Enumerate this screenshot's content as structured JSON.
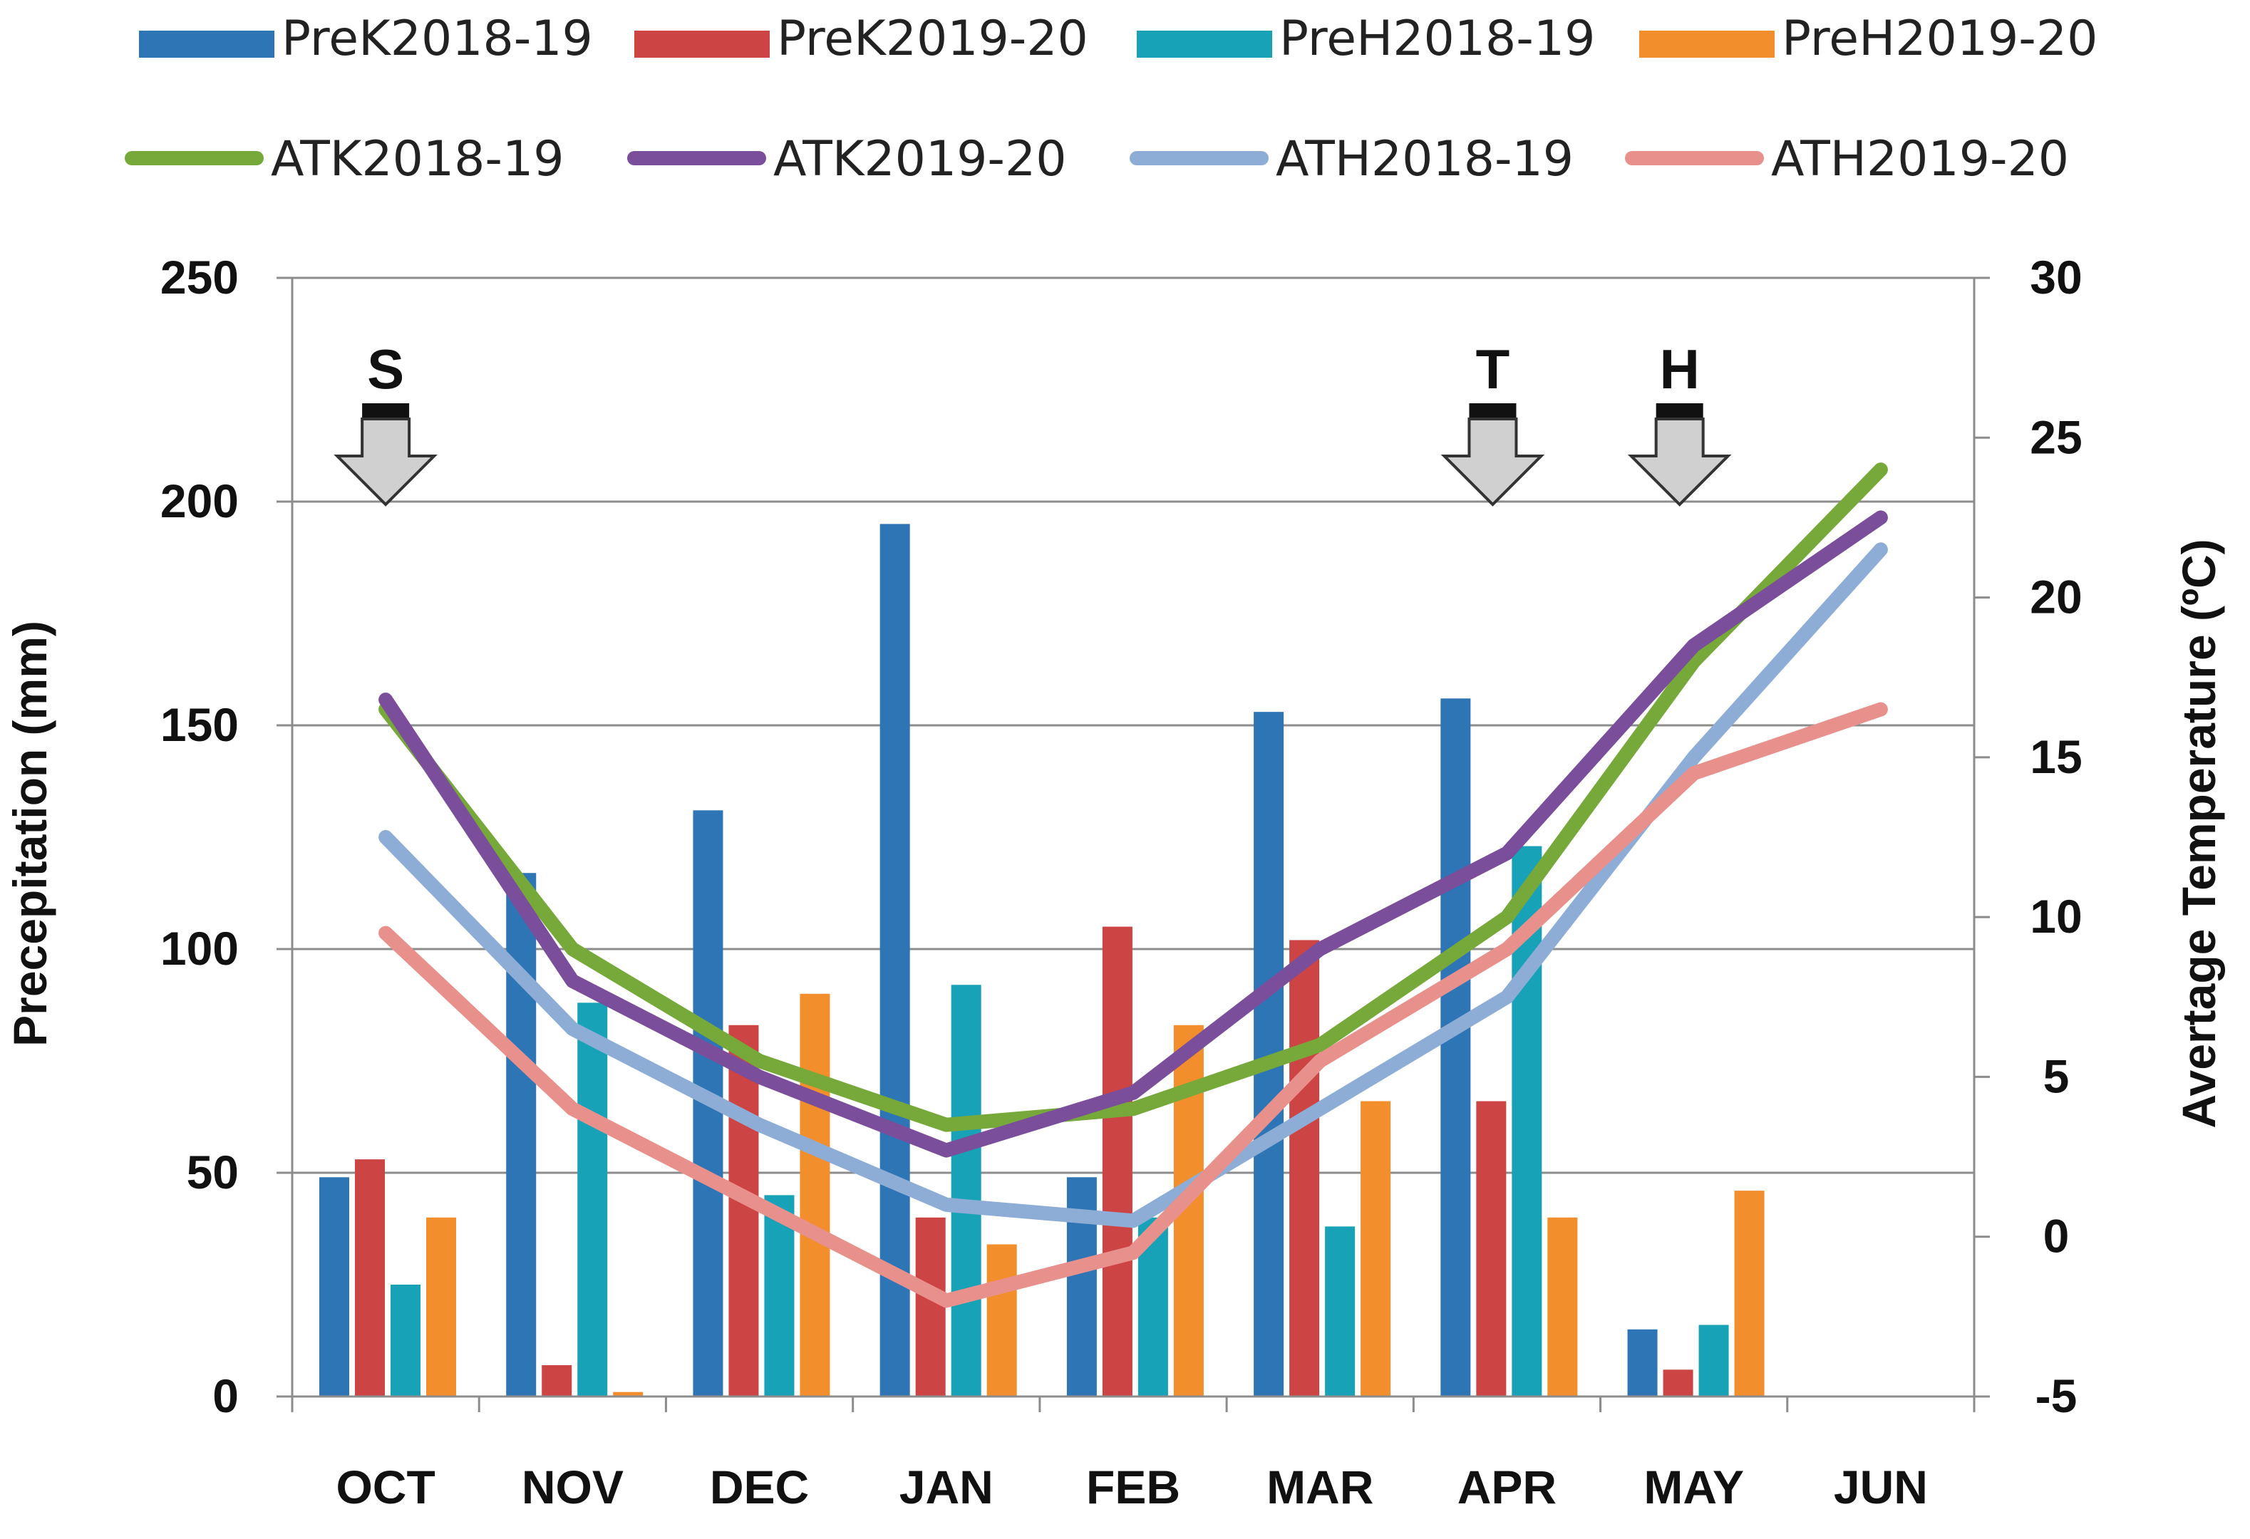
{
  "chart_data": {
    "type": "bar+line",
    "title": "",
    "xlabel": "",
    "ylabel": "Precepitation (mm)",
    "y2label": "Avertage Temperature (ºC)",
    "categories": [
      "OCT",
      "NOV",
      "DEC",
      "JAN",
      "FEB",
      "MAR",
      "APR",
      "MAY",
      "JUN"
    ],
    "ylim": [
      0,
      250
    ],
    "y2lim": [
      -5,
      30
    ],
    "yticks": [
      "0",
      "50",
      "100",
      "150",
      "200",
      "250"
    ],
    "y2ticks": [
      "-5",
      "0",
      "5",
      "10",
      "15",
      "20",
      "25",
      "30"
    ],
    "grid": "horizontal",
    "legend_position": "top",
    "bar_series": [
      {
        "name": "PreK2018-19",
        "color": "#2e75b6",
        "values": [
          49,
          117,
          131,
          195,
          49,
          153,
          156,
          15,
          null
        ]
      },
      {
        "name": "PreK2019-20",
        "color": "#cc4444",
        "values": [
          53,
          7,
          83,
          40,
          105,
          102,
          66,
          6,
          null
        ]
      },
      {
        "name": "PreH2018-19",
        "color": "#17a2b8",
        "values": [
          25,
          88,
          45,
          92,
          40,
          38,
          123,
          16,
          null
        ]
      },
      {
        "name": "PreH2019-20",
        "color": "#f28e2b",
        "values": [
          40,
          1,
          90,
          34,
          83,
          66,
          40,
          46,
          null
        ]
      }
    ],
    "line_series": [
      {
        "name": "ATK2018-19",
        "color": "#77a83a",
        "values": [
          16.5,
          9,
          5.5,
          3.5,
          4,
          6,
          10,
          18,
          24
        ]
      },
      {
        "name": "ATK2019-20",
        "color": "#7a4e9a",
        "values": [
          16.8,
          8,
          5,
          2.7,
          4.5,
          9,
          12,
          18.5,
          22.5
        ]
      },
      {
        "name": "ATH2018-19",
        "color": "#8eadd6",
        "values": [
          12.5,
          6.5,
          3.5,
          1,
          0.5,
          4,
          7.5,
          15,
          21.5
        ]
      },
      {
        "name": "ATH2019-20",
        "color": "#e8908b",
        "values": [
          9.5,
          4,
          1,
          -2,
          -0.5,
          5.5,
          9,
          14.5,
          16.5
        ]
      }
    ],
    "annotations": [
      {
        "label": "S",
        "category": "OCT",
        "description": "arrow marker"
      },
      {
        "label": "T",
        "category": "APR",
        "description": "arrow marker"
      },
      {
        "label": "H",
        "category": "MAY",
        "description": "arrow marker"
      }
    ]
  }
}
